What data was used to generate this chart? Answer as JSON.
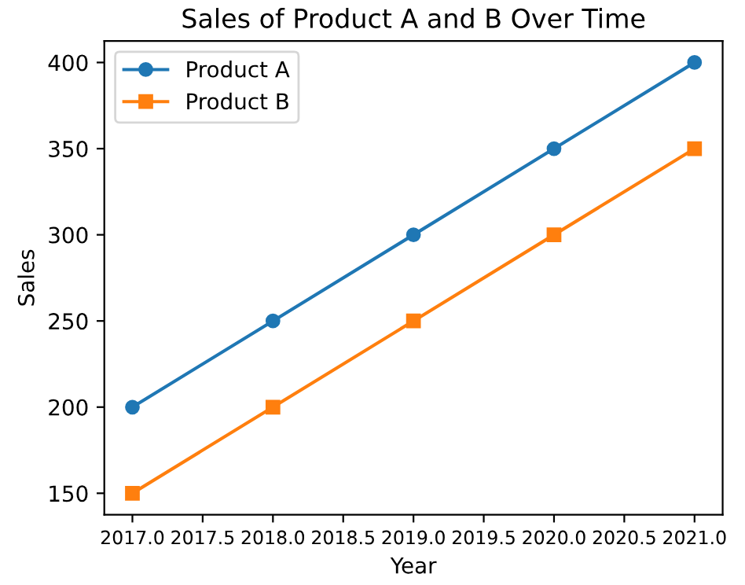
{
  "chart_data": {
    "type": "line",
    "title": "Sales of Product A and B Over Time",
    "xlabel": "Year",
    "ylabel": "Sales",
    "x": [
      2017,
      2018,
      2019,
      2020,
      2021
    ],
    "series": [
      {
        "name": "Product A",
        "color": "#1f77b4",
        "marker": "circle",
        "values": [
          200,
          250,
          300,
          350,
          400
        ]
      },
      {
        "name": "Product B",
        "color": "#ff7f0e",
        "marker": "square",
        "values": [
          150,
          200,
          250,
          300,
          350
        ]
      }
    ],
    "xlim": [
      2016.8,
      2021.2
    ],
    "xticks": [
      {
        "value": 2017,
        "label": "2017.0"
      },
      {
        "value": 2017.5,
        "label": "2017.5"
      },
      {
        "value": 2018,
        "label": "2018.0"
      },
      {
        "value": 2018.5,
        "label": "2018.5"
      },
      {
        "value": 2019,
        "label": "2019.0"
      },
      {
        "value": 2019.5,
        "label": "2019.5"
      },
      {
        "value": 2020,
        "label": "2020.0"
      },
      {
        "value": 2020.5,
        "label": "2020.5"
      },
      {
        "value": 2021,
        "label": "2021.0"
      }
    ],
    "ylim": [
      137.5,
      412.5
    ],
    "yticks": [
      150,
      200,
      250,
      300,
      350,
      400
    ],
    "grid": false,
    "legend": "top left",
    "line_style": "solid"
  }
}
